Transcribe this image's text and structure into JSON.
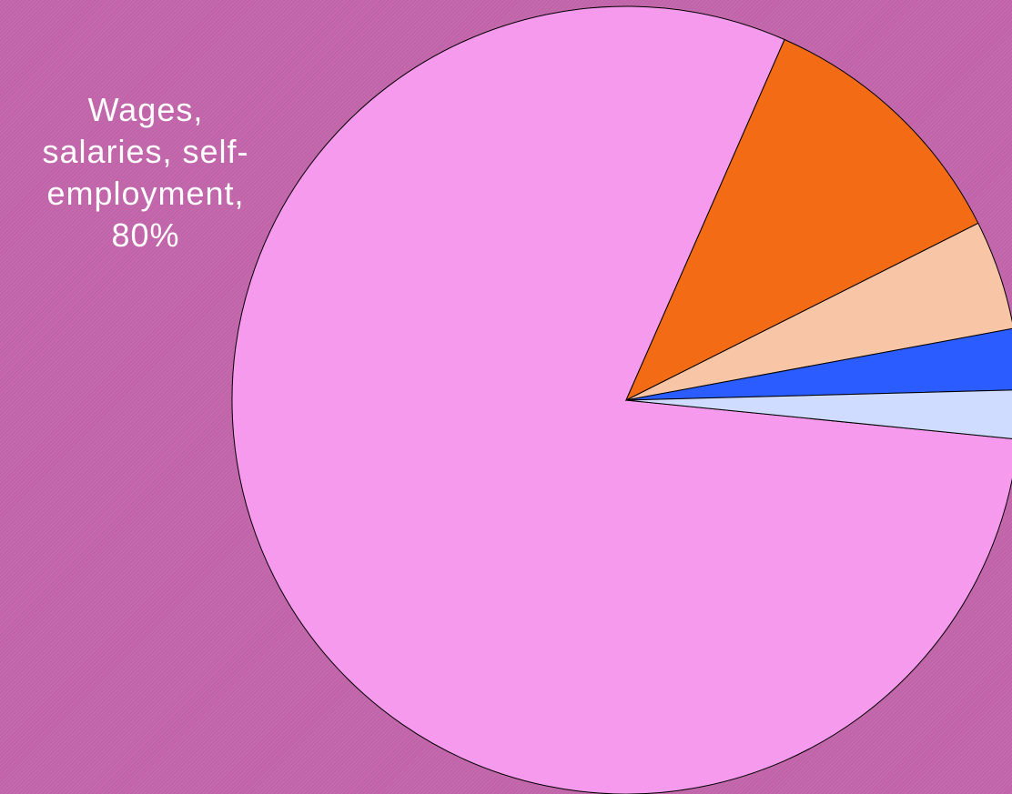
{
  "chart_data": {
    "type": "pie",
    "slices": [
      {
        "label": "Wages, salaries, self-employment",
        "value": 80,
        "color": "#f59aec",
        "label_lines": [
          "Wages,",
          "salaries, self-",
          "employment,",
          "80%"
        ]
      },
      {
        "label": "",
        "value": 11,
        "color": "#f46b16"
      },
      {
        "label": "",
        "value": 4.5,
        "color": "#f9c5a7"
      },
      {
        "label": "",
        "value": 2.5,
        "color": "#2b5cff"
      },
      {
        "label": "",
        "value": 2,
        "color": "#cfdcff"
      }
    ]
  }
}
